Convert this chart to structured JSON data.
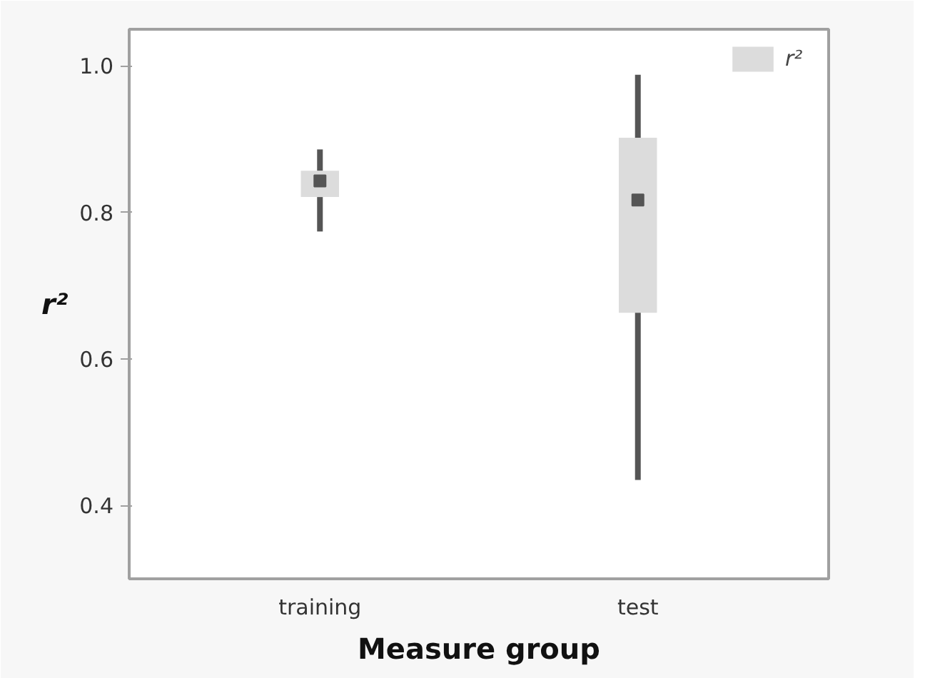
{
  "chart_data": {
    "type": "box",
    "xlabel": "Measure group",
    "ylabel": "r²",
    "categories": [
      "training",
      "test"
    ],
    "series": [
      {
        "name": "r²",
        "color": "#dcdcdc",
        "boxes": [
          {
            "low": 0.774,
            "q1": 0.821,
            "median": 0.843,
            "q3": 0.857,
            "high": 0.886
          },
          {
            "low": 0.435,
            "q1": 0.663,
            "median": 0.817,
            "q3": 0.902,
            "high": 0.988
          }
        ]
      }
    ],
    "ylim": [
      0.3,
      1.05
    ],
    "yticks": [
      {
        "value": 0.4,
        "label": "0.4"
      },
      {
        "value": 0.6,
        "label": "0.6"
      },
      {
        "value": 0.8,
        "label": "0.8"
      },
      {
        "value": 1.0,
        "label": "1.0"
      }
    ],
    "grid": false,
    "legend": "top right"
  }
}
